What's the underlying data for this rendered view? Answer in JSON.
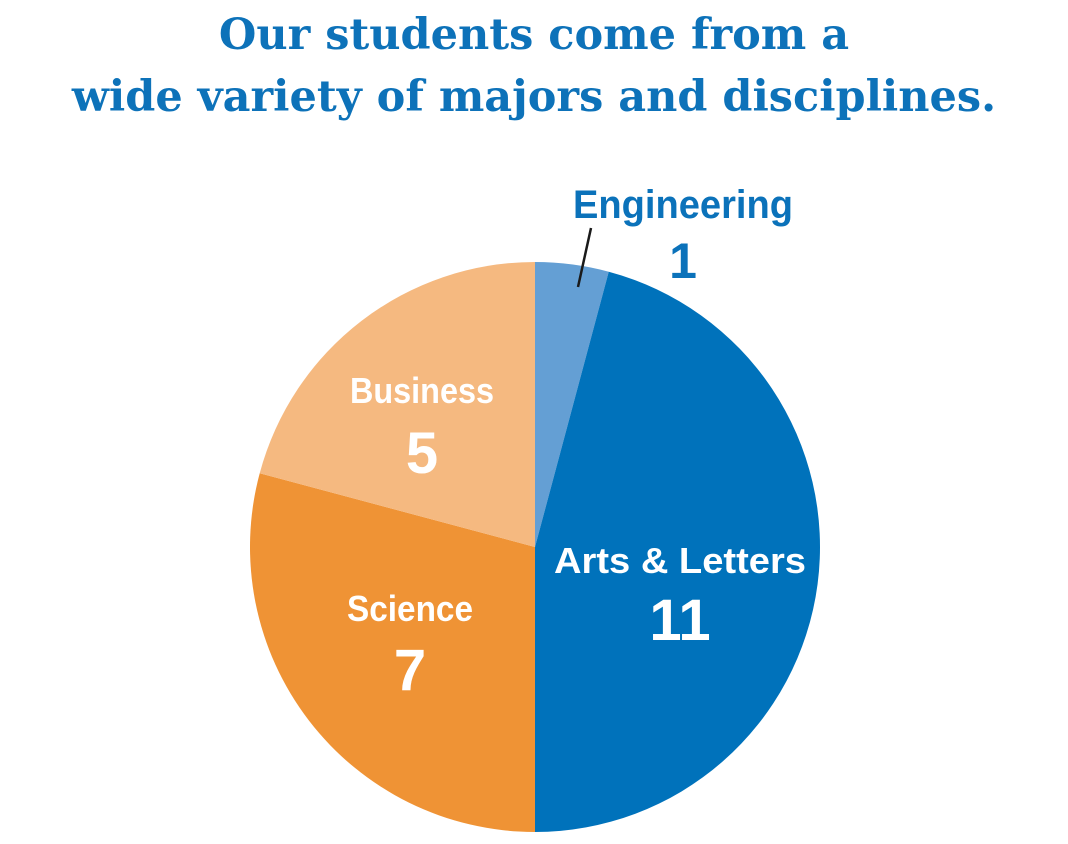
{
  "chart_data": {
    "type": "pie",
    "title_lines": [
      "Our students come from a",
      "wide variety of majors and disciplines."
    ],
    "slices": [
      {
        "label": "Engineering",
        "value": 1,
        "color": "#649fd4",
        "label_color": "#0b72ba",
        "label_outside": true
      },
      {
        "label": "Arts & Letters",
        "value": 11,
        "color": "#0072bb",
        "label_color": "#ffffff"
      },
      {
        "label": "Science",
        "value": 7,
        "color": "#ef9335",
        "label_color": "#ffffff"
      },
      {
        "label": "Business",
        "value": 5,
        "color": "#f5b980",
        "label_color": "#ffffff"
      }
    ],
    "start": "12 o'clock",
    "direction": "clockwise",
    "legend": "none"
  }
}
